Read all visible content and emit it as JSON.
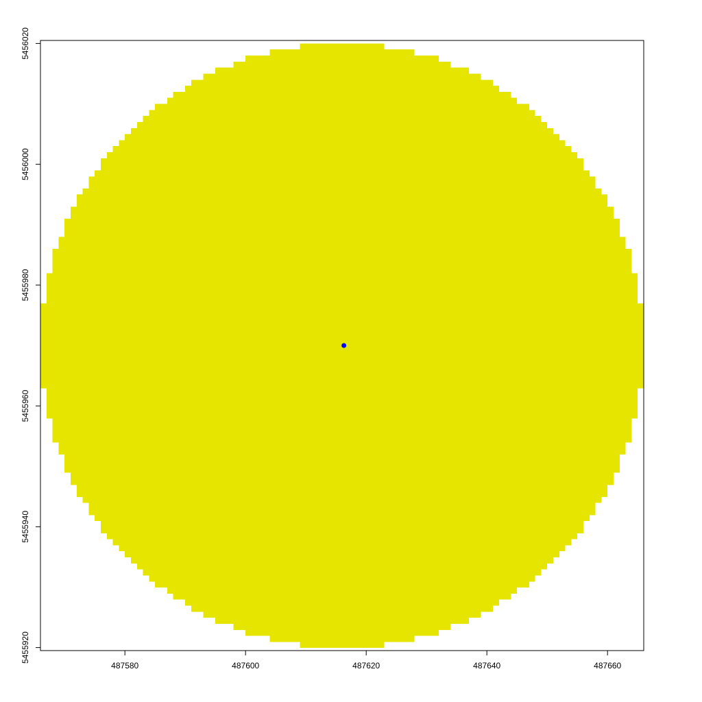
{
  "chart_data": {
    "type": "raster",
    "title": "",
    "xlabel": "",
    "ylabel": "",
    "xlim": [
      487566,
      487666
    ],
    "ylim": [
      5455919.5,
      5456020.5
    ],
    "x_ticks": [
      487580,
      487600,
      487620,
      487640,
      487660
    ],
    "y_ticks": [
      5455920,
      5455940,
      5455960,
      5455980,
      5456000,
      5456020
    ],
    "x_tick_labels": [
      "487580",
      "487600",
      "487620",
      "487640",
      "487660"
    ],
    "y_tick_labels": [
      "5455920",
      "5455940",
      "5455960",
      "5455980",
      "5456000",
      "5456020"
    ],
    "raster": {
      "shape": "circle",
      "center": [
        487616,
        5455970
      ],
      "radius": 50,
      "cell_size": 1,
      "fill_color": "#E5E500"
    },
    "point": {
      "x": 487616.3,
      "y": 5455970,
      "color": "#0000FF"
    },
    "grid": false,
    "legend": "none",
    "box": true
  }
}
